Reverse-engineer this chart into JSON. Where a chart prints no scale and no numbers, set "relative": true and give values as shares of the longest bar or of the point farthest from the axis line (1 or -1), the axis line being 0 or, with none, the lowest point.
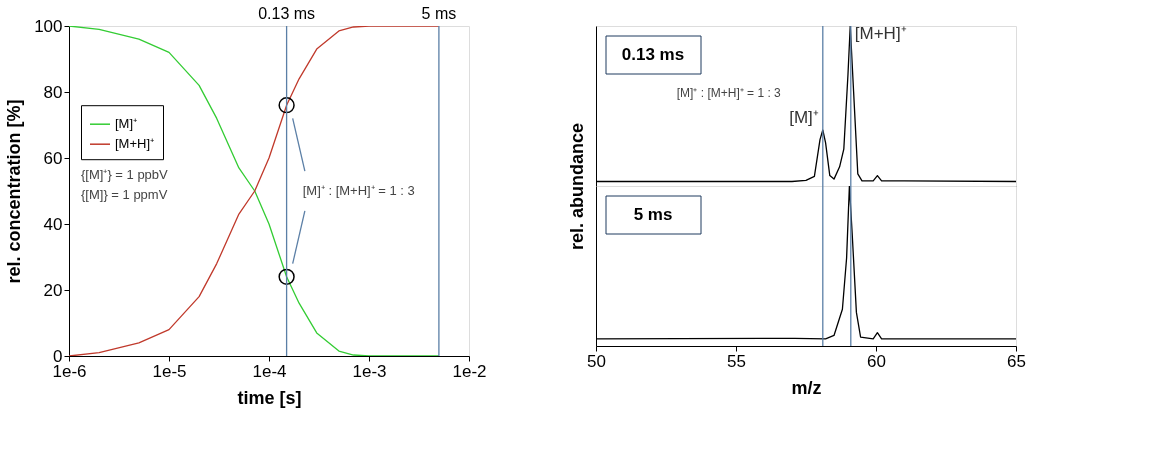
{
  "chart_data": [
    {
      "type": "line",
      "xlabel": "time [s]",
      "ylabel": "rel. concentration [%]",
      "log": "x",
      "xlim": [
        1e-06,
        0.01
      ],
      "xticks": [
        {
          "value": 1e-06,
          "label": "1e-6"
        },
        {
          "value": 1e-05,
          "label": "1e-5"
        },
        {
          "value": 0.0001,
          "label": "1e-4"
        },
        {
          "value": 0.001,
          "label": "1e-3"
        },
        {
          "value": 0.01,
          "label": "1e-2"
        }
      ],
      "ylim": [
        0,
        100
      ],
      "yticks": [
        0,
        20,
        40,
        60,
        80,
        100
      ],
      "grid": false,
      "legend": "top left",
      "line_style": "solid",
      "x": [
        1e-06,
        2e-06,
        5e-06,
        1e-05,
        2e-05,
        3e-05,
        5e-05,
        7.2e-05,
        0.0001,
        0.00015,
        0.0002,
        0.0003,
        0.0005,
        0.0007,
        0.001,
        0.002,
        0.005
      ],
      "series": [
        {
          "name": "[M]⁺",
          "color": "#33cc33",
          "values": [
            100,
            99,
            96,
            92,
            82,
            72,
            57,
            50,
            40,
            24,
            16,
            7,
            1.5,
            0.3,
            0,
            0,
            0
          ]
        },
        {
          "name": "[M+H]⁺",
          "color": "#c0392b",
          "values": [
            0,
            1,
            4,
            8,
            18,
            28,
            43,
            50,
            60,
            76,
            84,
            93,
            98.5,
            99.7,
            100,
            100,
            100
          ]
        },
        {
          "type": "scatter",
          "marker": "circle",
          "color": "#000000",
          "x": [
            0.00015,
            0.00015
          ],
          "values": [
            76,
            24
          ]
        }
      ],
      "ref_lines": [
        {
          "axis": "x",
          "value": 0.00015,
          "label": "0.13 ms",
          "color": "#5b7fa6"
        },
        {
          "axis": "x",
          "value": 0.005,
          "label": "5 ms",
          "color": "#5b7fa6"
        }
      ],
      "annotations": [
        "{[M]⁺} = 1 ppbV",
        "{[M]} = 1 ppmV",
        "[M]⁺ : [M+H]⁺ = 1 : 3"
      ]
    },
    {
      "type": "line",
      "title": "0.13 ms",
      "ylabel": "rel. abundance",
      "relative": true,
      "xlim": [
        50,
        65
      ],
      "tick_labels": false,
      "series": [
        {
          "color": "#000000",
          "x": [
            50,
            57.0,
            57.5,
            57.8,
            58.0,
            58.1,
            58.2,
            58.35,
            58.5,
            58.7,
            58.85,
            59.0,
            59.08,
            59.2,
            59.35,
            59.5,
            59.9,
            60.05,
            60.2,
            61,
            65
          ],
          "values": [
            0.028,
            0.028,
            0.035,
            0.06,
            0.29,
            0.35,
            0.27,
            0.065,
            0.043,
            0.12,
            0.23,
            0.7,
            1,
            0.59,
            0.076,
            0.032,
            0.032,
            0.065,
            0.032,
            0.032,
            0.028
          ]
        }
      ],
      "ref_lines": [
        {
          "axis": "x",
          "value": 58.1,
          "color": "#5b7fa6"
        },
        {
          "axis": "x",
          "value": 59.1,
          "color": "#5b7fa6"
        }
      ],
      "annotations": [
        "[M]⁺ : [M+H]⁺ = 1 : 3",
        {
          "text": "[M]⁺",
          "x": 58.1,
          "y": 0.35
        },
        {
          "text": "[M+H]⁺",
          "x": 59.1,
          "y": 1
        }
      ]
    },
    {
      "type": "line",
      "title": "5 ms",
      "xlabel": "m/z",
      "relative": true,
      "xlim": [
        50,
        65
      ],
      "xticks": [
        50,
        55,
        60,
        65
      ],
      "tick_labels": "x",
      "series": [
        {
          "color": "#000000",
          "x": [
            50,
            57.1,
            58.2,
            58.5,
            58.8,
            58.95,
            59.05,
            59.15,
            59.3,
            59.45,
            59.9,
            60.05,
            60.2,
            65
          ],
          "values": [
            0.045,
            0.048,
            0.045,
            0.066,
            0.23,
            0.55,
            1,
            0.7,
            0.21,
            0.055,
            0.045,
            0.083,
            0.045,
            0.045
          ]
        }
      ],
      "ref_lines": [
        {
          "axis": "x",
          "value": 58.1,
          "color": "#5b7fa6"
        },
        {
          "axis": "x",
          "value": 59.1,
          "color": "#5b7fa6"
        }
      ]
    }
  ]
}
